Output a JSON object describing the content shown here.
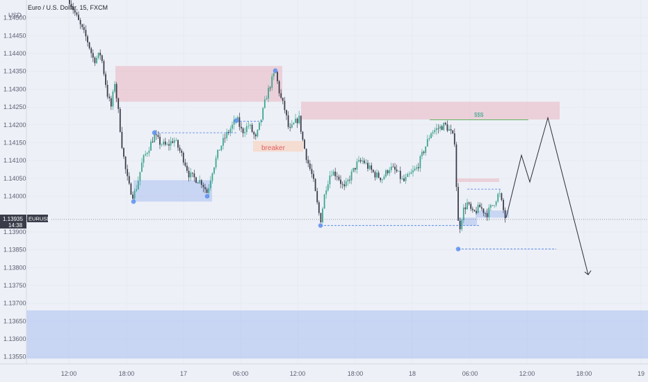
{
  "header": {
    "title": "Euro / U.S. Dollar, 15, FXCM",
    "currency": "USD"
  },
  "y_axis": {
    "labels": [
      "1.14500",
      "1.14450",
      "1.14400",
      "1.14350",
      "1.14300",
      "1.14250",
      "1.14200",
      "1.14150",
      "1.14100",
      "1.14050",
      "1.14000",
      "1.13900",
      "1.13850",
      "1.13800",
      "1.13750",
      "1.13700",
      "1.13650",
      "1.13600",
      "1.13550"
    ]
  },
  "x_axis": {
    "labels": [
      {
        "text": "12:00",
        "pos": 99
      },
      {
        "text": "18:00",
        "pos": 182
      },
      {
        "text": "17",
        "pos": 264
      },
      {
        "text": "06:00",
        "pos": 346
      },
      {
        "text": "12:00",
        "pos": 428
      },
      {
        "text": "18:00",
        "pos": 511
      },
      {
        "text": "18",
        "pos": 593
      },
      {
        "text": "06:00",
        "pos": 676
      },
      {
        "text": "12:00",
        "pos": 758
      },
      {
        "text": "18:00",
        "pos": 840
      },
      {
        "text": "19",
        "pos": 922
      }
    ]
  },
  "price_badge": {
    "price": "1.13935",
    "countdown": "14:38",
    "symbol": "EURUSD",
    "value": 1.13935
  },
  "annotations": {
    "breaker": "breaker",
    "liquidity": "$$$"
  },
  "colors": {
    "up": "#3da58f",
    "down": "#3a3d49",
    "supply": "#e8a9b4",
    "demand": "#a9c0f0",
    "breaker_fill": "#f6d8c8",
    "breaker_text": "#e06060"
  },
  "chart_data": {
    "type": "candlestick",
    "symbol": "EURUSD",
    "timeframe": "15",
    "ylim": [
      1.1353,
      1.1455
    ],
    "price_path": [
      [
        100,
        1.1455
      ],
      [
        115,
        1.1448
      ],
      [
        125,
        1.1444
      ],
      [
        135,
        1.1438
      ],
      [
        145,
        1.144
      ],
      [
        155,
        1.1428
      ],
      [
        160,
        1.1425
      ],
      [
        165,
        1.1432
      ],
      [
        170,
        1.1424
      ],
      [
        175,
        1.1415
      ],
      [
        180,
        1.1408
      ],
      [
        185,
        1.1403
      ],
      [
        192,
        1.14
      ],
      [
        197,
        1.1403
      ],
      [
        205,
        1.141
      ],
      [
        215,
        1.1414
      ],
      [
        222,
        1.1417
      ],
      [
        230,
        1.1415
      ],
      [
        240,
        1.1414
      ],
      [
        250,
        1.1416
      ],
      [
        258,
        1.1413
      ],
      [
        265,
        1.141
      ],
      [
        272,
        1.1406
      ],
      [
        280,
        1.1405
      ],
      [
        290,
        1.1404
      ],
      [
        298,
        1.1401
      ],
      [
        305,
        1.1407
      ],
      [
        315,
        1.1413
      ],
      [
        325,
        1.1417
      ],
      [
        335,
        1.142
      ],
      [
        340,
        1.1422
      ],
      [
        348,
        1.1418
      ],
      [
        358,
        1.142
      ],
      [
        368,
        1.1416
      ],
      [
        376,
        1.1422
      ],
      [
        383,
        1.1428
      ],
      [
        390,
        1.1432
      ],
      [
        396,
        1.1435
      ],
      [
        403,
        1.1428
      ],
      [
        410,
        1.1424
      ],
      [
        416,
        1.1418
      ],
      [
        422,
        1.142
      ],
      [
        430,
        1.1422
      ],
      [
        436,
        1.1415
      ],
      [
        442,
        1.141
      ],
      [
        450,
        1.1405
      ],
      [
        456,
        1.1398
      ],
      [
        461,
        1.1393
      ],
      [
        468,
        1.1402
      ],
      [
        476,
        1.1407
      ],
      [
        485,
        1.1406
      ],
      [
        495,
        1.1402
      ],
      [
        505,
        1.1406
      ],
      [
        513,
        1.1409
      ],
      [
        522,
        1.141
      ],
      [
        530,
        1.1408
      ],
      [
        540,
        1.1406
      ],
      [
        550,
        1.1405
      ],
      [
        560,
        1.1408
      ],
      [
        570,
        1.1407
      ],
      [
        580,
        1.1404
      ],
      [
        590,
        1.1406
      ],
      [
        600,
        1.1408
      ],
      [
        610,
        1.1413
      ],
      [
        620,
        1.1418
      ],
      [
        630,
        1.1419
      ],
      [
        640,
        1.142
      ],
      [
        648,
        1.1418
      ],
      [
        655,
        1.1415
      ],
      [
        657,
        1.1398
      ],
      [
        660,
        1.139
      ],
      [
        666,
        1.1396
      ],
      [
        672,
        1.1398
      ],
      [
        680,
        1.1395
      ],
      [
        690,
        1.1397
      ],
      [
        700,
        1.1395
      ],
      [
        710,
        1.1398
      ],
      [
        718,
        1.1401
      ],
      [
        724,
        1.1396
      ],
      [
        728,
        1.1393
      ]
    ],
    "projection": [
      [
        728,
        1.1394
      ],
      [
        750,
        1.14115
      ],
      [
        762,
        1.1404
      ],
      [
        788,
        1.1422
      ],
      [
        846,
        1.1378
      ]
    ],
    "zones": [
      {
        "kind": "supply",
        "x1": 166,
        "x2": 406,
        "y1": 1.14365,
        "y2": 1.14265
      },
      {
        "kind": "supply",
        "x1": 433,
        "x2": 805,
        "y1": 1.14265,
        "y2": 1.14215
      },
      {
        "kind": "demand",
        "x1": 192,
        "x2": 305,
        "y1": 1.14045,
        "y2": 1.13985
      },
      {
        "kind": "breaker",
        "x1": 364,
        "x2": 436,
        "y1": 1.14155,
        "y2": 1.14125
      },
      {
        "kind": "supply",
        "x1": 657,
        "x2": 718,
        "y1": 1.1405,
        "y2": 1.1404
      },
      {
        "kind": "demand",
        "x1": 684,
        "x2": 732,
        "y1": 1.1396,
        "y2": 1.1394
      },
      {
        "kind": "demand",
        "x1": 660,
        "x2": 686,
        "y1": 1.1394,
        "y2": 1.13918
      },
      {
        "kind": "demand",
        "x1": 0,
        "x2": 932,
        "y1": 1.1368,
        "y2": 1.13545
      }
    ],
    "swing_levels": [
      {
        "x1": 222,
        "x2": 340,
        "y": 1.14178
      },
      {
        "x1": 340,
        "x2": 378,
        "y": 1.1421
      },
      {
        "x1": 461,
        "x2": 690,
        "y": 1.13918
      },
      {
        "x1": 659,
        "x2": 800,
        "y": 1.13852
      },
      {
        "x1": 672,
        "x2": 720,
        "y": 1.1402
      }
    ],
    "liquidity_line": {
      "x1": 618,
      "x2": 760,
      "y": 1.14214
    },
    "swing_points": [
      {
        "x": 192,
        "y": 1.13985
      },
      {
        "x": 222,
        "y": 1.14178
      },
      {
        "x": 298,
        "y": 1.14
      },
      {
        "x": 340,
        "y": 1.14212
      },
      {
        "x": 396,
        "y": 1.14352
      },
      {
        "x": 461,
        "y": 1.13918
      },
      {
        "x": 659,
        "y": 1.13852
      }
    ]
  }
}
